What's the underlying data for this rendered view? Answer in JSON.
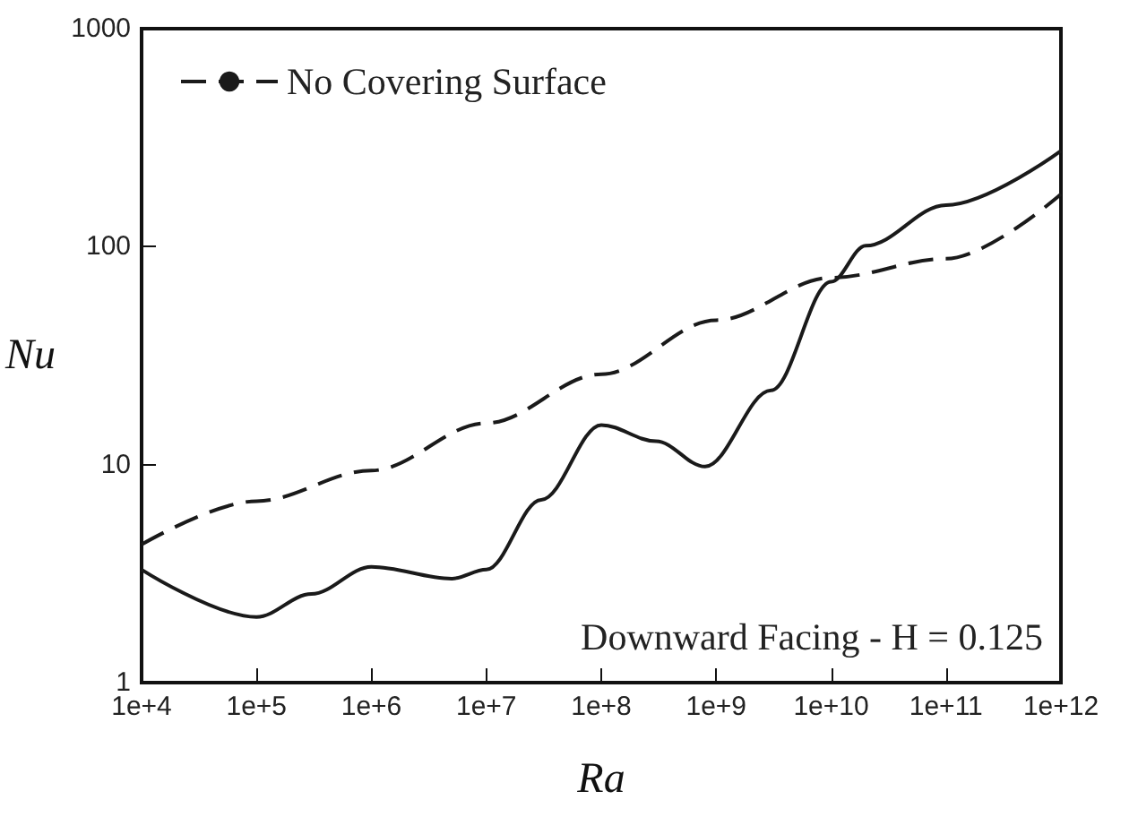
{
  "chart_data": {
    "type": "line",
    "xlabel": "Ra",
    "ylabel": "Nu",
    "log": "xy",
    "legend": "top left",
    "grid": false,
    "annotations": [
      "Downward Facing - H = 0.125"
    ],
    "xlim": [
      10000,
      1000000000000
    ],
    "ylim": [
      1,
      1000
    ],
    "xticks": [
      {
        "value": 10000,
        "label": "1e+4"
      },
      {
        "value": 100000,
        "label": "1e+5"
      },
      {
        "value": 1000000,
        "label": "1e+6"
      },
      {
        "value": 10000000,
        "label": "1e+7"
      },
      {
        "value": 100000000,
        "label": "1e+8"
      },
      {
        "value": 1000000000,
        "label": "1e+9"
      },
      {
        "value": 10000000000,
        "label": "1e+10"
      },
      {
        "value": 100000000000,
        "label": "1e+11"
      },
      {
        "value": 1000000000000,
        "label": "1e+12"
      }
    ],
    "yticks": [
      1,
      10,
      100,
      1000
    ],
    "series": [
      {
        "name": "No Covering Surface",
        "color": "#1a1a1a",
        "line_style": "dashed",
        "x": [
          10000,
          100000,
          1000000,
          10000000,
          100000000,
          1000000000,
          10000000000,
          100000000000,
          1000000000000
        ],
        "values": [
          4.3,
          6.8,
          9.4,
          15.5,
          26,
          46,
          72,
          88,
          174
        ]
      },
      {
        "color": "#1a1a1a",
        "line_style": "solid",
        "x": [
          10000,
          100000,
          300000,
          1000000,
          5000000,
          10000000,
          30000000,
          100000000,
          300000000,
          800000000,
          3000000000,
          10000000000,
          20000000000,
          100000000000,
          1000000000000
        ],
        "values": [
          3.3,
          2.0,
          2.55,
          3.4,
          3.0,
          3.3,
          6.9,
          15.2,
          12.8,
          9.8,
          21.9,
          69,
          101,
          155,
          275
        ]
      }
    ]
  }
}
